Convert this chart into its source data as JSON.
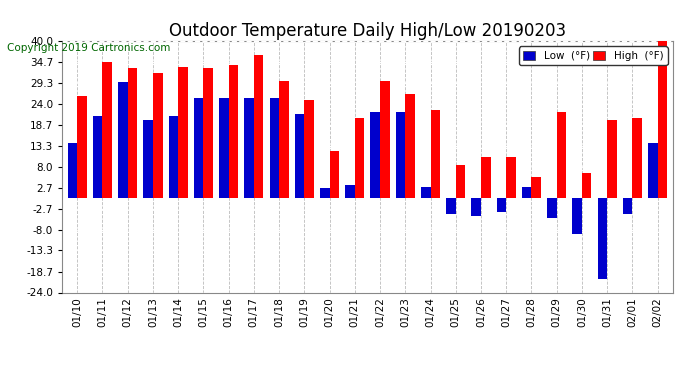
{
  "title": "Outdoor Temperature Daily High/Low 20190203",
  "copyright": "Copyright 2019 Cartronics.com",
  "legend_low": "Low  (°F)",
  "legend_high": "High  (°F)",
  "dates": [
    "01/10",
    "01/11",
    "01/12",
    "01/13",
    "01/14",
    "01/15",
    "01/16",
    "01/17",
    "01/18",
    "01/19",
    "01/20",
    "01/21",
    "01/22",
    "01/23",
    "01/24",
    "01/25",
    "01/26",
    "01/27",
    "01/28",
    "01/29",
    "01/30",
    "01/31",
    "02/01",
    "02/02"
  ],
  "high": [
    26.0,
    34.7,
    33.3,
    32.0,
    33.5,
    33.3,
    34.0,
    36.5,
    30.0,
    25.0,
    12.0,
    20.5,
    30.0,
    26.5,
    22.5,
    8.5,
    10.5,
    10.5,
    5.5,
    22.0,
    6.5,
    20.0,
    20.5,
    40.0
  ],
  "low": [
    14.0,
    21.0,
    29.5,
    20.0,
    21.0,
    25.5,
    25.5,
    25.5,
    25.5,
    21.5,
    2.5,
    3.5,
    22.0,
    22.0,
    3.0,
    -4.0,
    -4.5,
    -3.5,
    3.0,
    -5.0,
    -9.0,
    -20.5,
    -4.0,
    14.0
  ],
  "ylim": [
    -24.0,
    40.0
  ],
  "yticks": [
    -24.0,
    -18.7,
    -13.3,
    -8.0,
    -2.7,
    2.7,
    8.0,
    13.3,
    18.7,
    24.0,
    29.3,
    34.7,
    40.0
  ],
  "bar_width": 0.38,
  "high_color": "#ff0000",
  "low_color": "#0000cc",
  "bg_color": "#ffffff",
  "grid_color": "#bbbbbb",
  "title_fontsize": 12,
  "copyright_fontsize": 7.5,
  "tick_fontsize": 7.5,
  "figwidth": 6.9,
  "figheight": 3.75,
  "dpi": 100
}
